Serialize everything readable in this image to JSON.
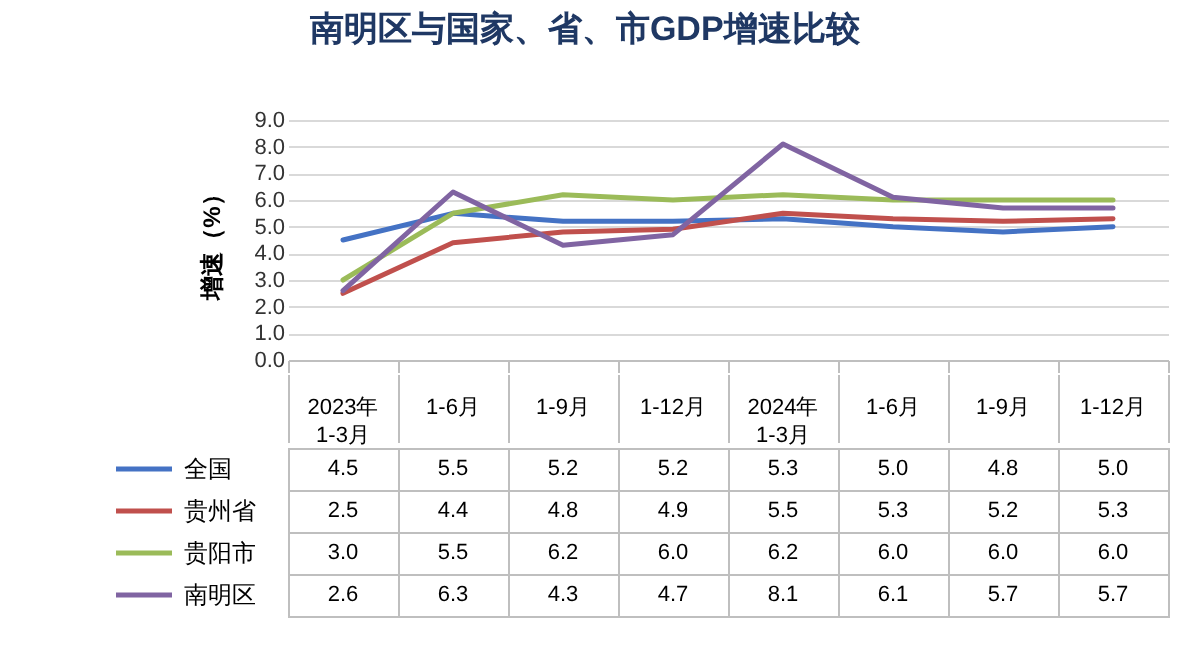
{
  "chart_data": {
    "type": "line",
    "title": "南明区与国家、省、市GDP增速比较",
    "ylabel": "增速（%）",
    "categories": [
      "2023年\n1-3月",
      "1-6月",
      "1-9月",
      "1-12月",
      "2024年\n1-3月",
      "1-6月",
      "1-9月",
      "1-12月"
    ],
    "series": [
      {
        "name": "全国",
        "color": "#4472c4",
        "values": [
          4.5,
          5.5,
          5.2,
          5.2,
          5.3,
          5.0,
          4.8,
          5.0
        ],
        "value_labels": [
          "4.5",
          "5.5",
          "5.2",
          "5.2",
          "5.3",
          "5.0",
          "4.8",
          "5.0"
        ]
      },
      {
        "name": "贵州省",
        "color": "#c0504d",
        "values": [
          2.5,
          4.4,
          4.8,
          4.9,
          5.5,
          5.3,
          5.2,
          5.3
        ],
        "value_labels": [
          "2.5",
          "4.4",
          "4.8",
          "4.9",
          "5.5",
          "5.3",
          "5.2",
          "5.3"
        ]
      },
      {
        "name": "贵阳市",
        "color": "#9bbb59",
        "values": [
          3.0,
          5.5,
          6.2,
          6.0,
          6.2,
          6.0,
          6.0,
          6.0
        ],
        "value_labels": [
          "3.0",
          "5.5",
          "6.2",
          "6.0",
          "6.2",
          "6.0",
          "6.0",
          "6.0"
        ]
      },
      {
        "name": "南明区",
        "color": "#8064a2",
        "values": [
          2.6,
          6.3,
          4.3,
          4.7,
          8.1,
          6.1,
          5.7,
          5.7
        ],
        "value_labels": [
          "2.6",
          "6.3",
          "4.3",
          "4.7",
          "8.1",
          "6.1",
          "5.7",
          "5.7"
        ]
      }
    ],
    "ylim": [
      0,
      9
    ],
    "yticks": [
      {
        "value": 0,
        "label": "0.0"
      },
      {
        "value": 1,
        "label": "1.0"
      },
      {
        "value": 2,
        "label": "2.0"
      },
      {
        "value": 3,
        "label": "3.0"
      },
      {
        "value": 4,
        "label": "4.0"
      },
      {
        "value": 5,
        "label": "5.0"
      },
      {
        "value": 6,
        "label": "6.0"
      },
      {
        "value": 7,
        "label": "7.0"
      },
      {
        "value": 8,
        "label": "8.0"
      },
      {
        "value": 9,
        "label": "9.0"
      }
    ],
    "grid": "y",
    "legend": "bottom",
    "marker": "none",
    "line_style": "solid"
  }
}
